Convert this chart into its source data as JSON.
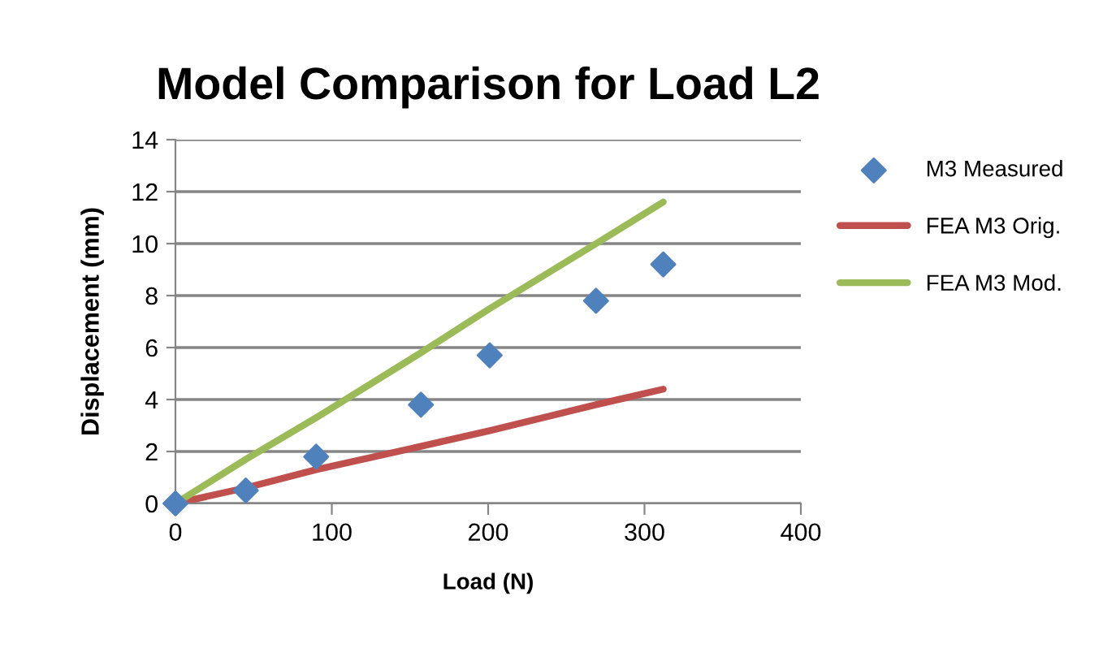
{
  "chart_data": {
    "type": "scatter",
    "title": "Model Comparison for Load L2",
    "xlabel": "Load (N)",
    "ylabel": "Displacement (mm)",
    "x": [
      0,
      45,
      90,
      157,
      201,
      269,
      312
    ],
    "series": [
      {
        "name": "M3 Measured",
        "color": "#4f81bd",
        "marker": "diamond",
        "values": [
          0,
          0.5,
          1.8,
          3.8,
          5.7,
          7.8,
          9.2
        ]
      },
      {
        "name": "FEA M3 Orig.",
        "type": "line",
        "color": "#c0504d",
        "marker": "none",
        "values": [
          0,
          0.6,
          1.3,
          2.2,
          2.8,
          3.8,
          4.4
        ]
      },
      {
        "name": "FEA M3 Mod.",
        "type": "line",
        "color": "#9bbb59",
        "marker": "none",
        "values": [
          0,
          1.7,
          3.3,
          5.8,
          7.5,
          10.0,
          11.6
        ]
      }
    ],
    "xlim": [
      0,
      400
    ],
    "xticks": [
      0,
      100,
      200,
      300,
      400
    ],
    "ylim": [
      0,
      14
    ],
    "yticks": [
      0,
      2,
      4,
      6,
      8,
      10,
      12,
      14
    ],
    "grid": "y",
    "legend": "right"
  }
}
